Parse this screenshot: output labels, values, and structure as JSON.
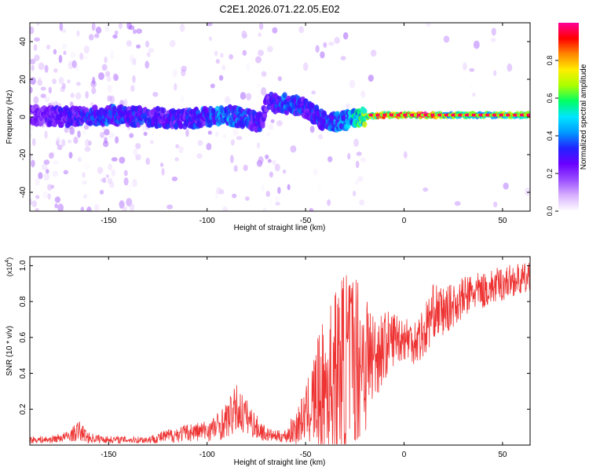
{
  "title": "C2E1.2026.071.22.05.E02",
  "chart_data": [
    {
      "type": "heatmap",
      "title": "C2E1.2026.071.22.05.E02",
      "xlabel": "Height of straight line (km)",
      "ylabel": "Frequency (Hz)",
      "xlim": [
        -190,
        64
      ],
      "ylim": [
        -50,
        50
      ],
      "xticks": [
        -150,
        -100,
        -50,
        0,
        50
      ],
      "yticks": [
        -40,
        -20,
        0,
        20,
        40
      ],
      "colorbar": {
        "label": "Normalized spectral amplitude",
        "range": [
          0,
          1
        ],
        "ticks": [
          0.0,
          0.2,
          0.4,
          0.6,
          0.8
        ],
        "tick_labels": [
          "0.0",
          "0.2",
          "0.4",
          "0.6",
          "0.8"
        ],
        "colors": [
          "#ffffff",
          "#d8b0ff",
          "#9a4dff",
          "#6a00ff",
          "#2222ff",
          "#0099ff",
          "#00e5ff",
          "#00ff66",
          "#aaff00",
          "#ffee00",
          "#ff8800",
          "#ff0000",
          "#ff0099"
        ]
      },
      "ridge": {
        "x": [
          -190,
          -170,
          -150,
          -130,
          -110,
          -90,
          -80,
          -72,
          -70,
          -60,
          -50,
          -40,
          -30,
          -20,
          -10,
          0,
          10,
          20,
          30,
          40,
          50,
          60,
          64
        ],
        "freq": [
          1,
          0,
          1,
          0,
          -1,
          1,
          -1,
          -3,
          8,
          7,
          5,
          -3,
          -2,
          0,
          1,
          1,
          1,
          1,
          1,
          1,
          1,
          1,
          1
        ],
        "amplitude": [
          0.2,
          0.3,
          0.35,
          0.3,
          0.3,
          0.4,
          0.35,
          0.3,
          0.25,
          0.4,
          0.3,
          0.35,
          0.4,
          0.6,
          0.8,
          0.9,
          0.95,
          0.6,
          0.6,
          0.6,
          0.6,
          0.6,
          0.7
        ]
      }
    },
    {
      "type": "line",
      "xlabel": "Height of straight line (km)",
      "ylabel": "SNR (10 * v/v)",
      "yscale_label": "(x10",
      "yscale_exp": "4",
      "yscale_close": ")",
      "xlim": [
        -190,
        64
      ],
      "ylim": [
        0,
        1.05
      ],
      "xticks": [
        -150,
        -100,
        -50,
        0,
        50
      ],
      "yticks": [
        0.2,
        0.4,
        0.6,
        0.8,
        1.0
      ],
      "ytick_labels": [
        "0.2",
        "0.4",
        "0.6",
        "0.8",
        "1.0"
      ],
      "color": "#ee3333",
      "series": [
        {
          "name": "SNR",
          "x": [
            -190,
            -180,
            -170,
            -165,
            -160,
            -150,
            -140,
            -130,
            -120,
            -110,
            -100,
            -95,
            -90,
            -85,
            -80,
            -75,
            -70,
            -65,
            -60,
            -55,
            -50,
            -45,
            -40,
            -35,
            -30,
            -25,
            -20,
            -15,
            -10,
            -5,
            0,
            5,
            10,
            15,
            20,
            25,
            30,
            35,
            40,
            45,
            50,
            55,
            60,
            64
          ],
          "y": [
            0.03,
            0.03,
            0.05,
            0.08,
            0.04,
            0.03,
            0.03,
            0.03,
            0.05,
            0.07,
            0.08,
            0.1,
            0.14,
            0.2,
            0.16,
            0.1,
            0.06,
            0.05,
            0.05,
            0.1,
            0.17,
            0.26,
            0.32,
            0.38,
            0.45,
            0.5,
            0.48,
            0.5,
            0.55,
            0.6,
            0.6,
            0.58,
            0.62,
            0.75,
            0.74,
            0.78,
            0.82,
            0.85,
            0.86,
            0.88,
            0.9,
            0.92,
            0.92,
            0.93
          ]
        }
      ],
      "noise_amp": [
        0.02,
        0.02,
        0.03,
        0.06,
        0.03,
        0.02,
        0.02,
        0.02,
        0.04,
        0.05,
        0.06,
        0.08,
        0.1,
        0.14,
        0.1,
        0.07,
        0.04,
        0.03,
        0.04,
        0.1,
        0.14,
        0.3,
        0.4,
        0.5,
        0.55,
        0.5,
        0.45,
        0.25,
        0.2,
        0.15,
        0.13,
        0.13,
        0.16,
        0.15,
        0.14,
        0.12,
        0.12,
        0.11,
        0.1,
        0.1,
        0.1,
        0.09,
        0.09,
        0.09
      ]
    }
  ]
}
